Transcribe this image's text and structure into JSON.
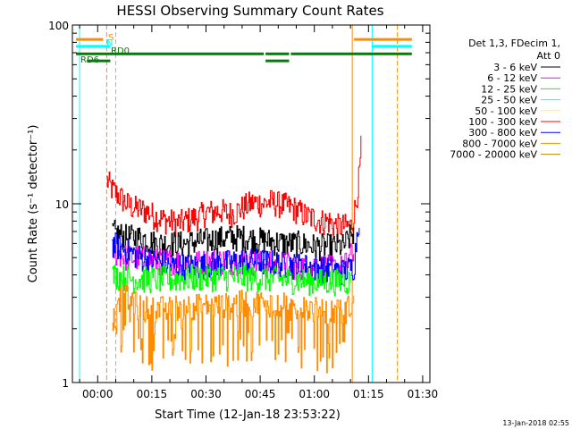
{
  "chart_data": {
    "type": "line",
    "title": "HESSI Observing Summary Count Rates",
    "xlabel": "Start Time (12-Jan-18 23:53:22)",
    "ylabel": "Count Rate (s⁻¹ detector⁻¹)",
    "y_scale": "log",
    "ylim": [
      1,
      100
    ],
    "xlim_minutes": [
      -7,
      92
    ],
    "x_ticks": [
      {
        "label": "00:00",
        "value": 0
      },
      {
        "label": "00:15",
        "value": 15
      },
      {
        "label": "00:30",
        "value": 30
      },
      {
        "label": "00:45",
        "value": 45
      },
      {
        "label": "01:00",
        "value": 60
      },
      {
        "label": "01:15",
        "value": 75
      },
      {
        "label": "01:30",
        "value": 90
      }
    ],
    "y_ticks": [
      {
        "label": "1",
        "value": 1
      },
      {
        "label": "10",
        "value": 10
      },
      {
        "label": "100",
        "value": 100
      }
    ],
    "legend": {
      "title_line1": "Det 1,3, FDecim 1,",
      "title_line2": "Att 0",
      "placement": "right",
      "entries": [
        {
          "name": "3 - 6 keV",
          "color": "#000000"
        },
        {
          "name": "6 - 12 keV",
          "color": "#ff00ff"
        },
        {
          "name": "12 - 25 keV",
          "color": "#00ff00"
        },
        {
          "name": "25 - 50 keV",
          "color": "#00ffff"
        },
        {
          "name": "50 - 100 keV",
          "color": "#ffff00"
        },
        {
          "name": "100 - 300 keV",
          "color": "#ff0000"
        },
        {
          "name": "300 - 800 keV",
          "color": "#0000ff"
        },
        {
          "name": "800 - 7000 keV",
          "color": "#ff8c00"
        },
        {
          "name": "7000 - 20000 keV",
          "color": "#b8860b"
        }
      ]
    },
    "series": [
      {
        "name": "100 - 300 keV",
        "color": "#ff0000",
        "x": [
          2.5,
          4,
          6,
          8,
          10,
          12,
          14,
          16,
          18,
          20,
          22,
          24,
          26,
          28,
          30,
          32,
          34,
          36,
          38,
          40,
          42,
          44,
          46,
          48,
          50,
          52,
          54,
          56,
          58,
          60,
          62,
          64,
          66,
          68,
          70,
          70.5,
          71.5,
          72.5,
          73
        ],
        "y": [
          13.5,
          12,
          11,
          10,
          9.5,
          9.3,
          9,
          8.5,
          8.2,
          8,
          7.8,
          8,
          8.3,
          8.5,
          9,
          9,
          9.2,
          8.8,
          9,
          9.5,
          10,
          10.2,
          10,
          10.3,
          10,
          9.8,
          9.5,
          9,
          8.5,
          8.3,
          8,
          8,
          7.5,
          7.5,
          7.5,
          8,
          10,
          15,
          22
        ]
      },
      {
        "name": "3 - 6 keV",
        "color": "#000000",
        "x": [
          4,
          8,
          12,
          16,
          20,
          24,
          28,
          32,
          36,
          40,
          44,
          48,
          52,
          56,
          60,
          64,
          68,
          71
        ],
        "y": [
          7,
          6.5,
          6.5,
          6,
          6,
          6,
          6.2,
          6.3,
          6.5,
          6.5,
          6.3,
          6.2,
          6,
          6,
          5.8,
          5.8,
          5.8,
          7
        ]
      },
      {
        "name": "6 - 12 keV",
        "color": "#ff00ff",
        "x": [
          4,
          8,
          12,
          16,
          20,
          24,
          28,
          32,
          36,
          40,
          44,
          48,
          52,
          56,
          60,
          64,
          68,
          71
        ],
        "y": [
          5.5,
          5,
          5,
          4.8,
          4.8,
          4.7,
          4.7,
          4.8,
          4.8,
          4.8,
          4.7,
          4.6,
          4.6,
          4.5,
          4.5,
          4.4,
          4.4,
          5.5
        ]
      },
      {
        "name": "300 - 800 keV",
        "color": "#0000ff",
        "x": [
          4,
          8,
          12,
          16,
          20,
          24,
          28,
          32,
          36,
          40,
          44,
          48,
          52,
          56,
          60,
          64,
          68,
          71,
          72.5
        ],
        "y": [
          6,
          5.5,
          5,
          4.8,
          4.5,
          4.5,
          4.5,
          4.6,
          4.7,
          4.8,
          4.8,
          4.7,
          4.6,
          4.5,
          4.4,
          4.3,
          4.2,
          4.5,
          9
        ]
      },
      {
        "name": "12 - 25 keV",
        "color": "#00ff00",
        "x": [
          4,
          10,
          20,
          30,
          40,
          50,
          60,
          70
        ],
        "y": [
          4,
          3.8,
          3.8,
          3.9,
          3.9,
          3.8,
          3.7,
          3.7
        ]
      },
      {
        "name": "800 - 7000 keV",
        "color": "#ff8c00",
        "x": [
          4,
          8,
          12,
          16,
          20,
          24,
          28,
          32,
          36,
          40,
          44,
          48,
          52,
          56,
          60,
          64,
          68,
          71
        ],
        "y": [
          3,
          3,
          2.6,
          2.6,
          2.6,
          2.7,
          2.7,
          2.7,
          2.7,
          2.8,
          2.8,
          2.8,
          2.7,
          2.6,
          2.6,
          2.5,
          2.5,
          2.8
        ]
      }
    ],
    "flags": [
      {
        "label": "S",
        "color": "#ff8c00",
        "y_level": 83,
        "segments": [
          [
            -6,
            1.5
          ],
          [
            71,
            87
          ]
        ]
      },
      {
        "label": "N",
        "color": "#00ffff",
        "y_level": 76,
        "segments": [
          [
            -6,
            3.5
          ],
          [
            76,
            87
          ]
        ]
      },
      {
        "label": "RD0",
        "color": "#008000",
        "y_level": 69,
        "segments": [
          [
            -6,
            46
          ],
          [
            46.5,
            53
          ],
          [
            53.5,
            87
          ]
        ]
      },
      {
        "label": "RD6",
        "color": "#008000",
        "y_level": 63,
        "segments": [
          [
            -3,
            3.5
          ],
          [
            46.5,
            53
          ]
        ]
      }
    ],
    "vertical_markers": [
      {
        "x": -5,
        "color": "#00ffff",
        "style": "solid"
      },
      {
        "x": 2.5,
        "color": "#ff8c00",
        "style": "dashed"
      },
      {
        "x": 5,
        "color": "#00ffff",
        "style": "dashed"
      },
      {
        "x": 70.5,
        "color": "#ff8c00",
        "style": "solid"
      },
      {
        "x": 76,
        "color": "#00ffff",
        "style": "solid"
      },
      {
        "x": 83,
        "color": "#ff8c00",
        "style": "dashed"
      }
    ]
  },
  "footer": {
    "timestamp": "13-Jan-2018 02:55"
  }
}
